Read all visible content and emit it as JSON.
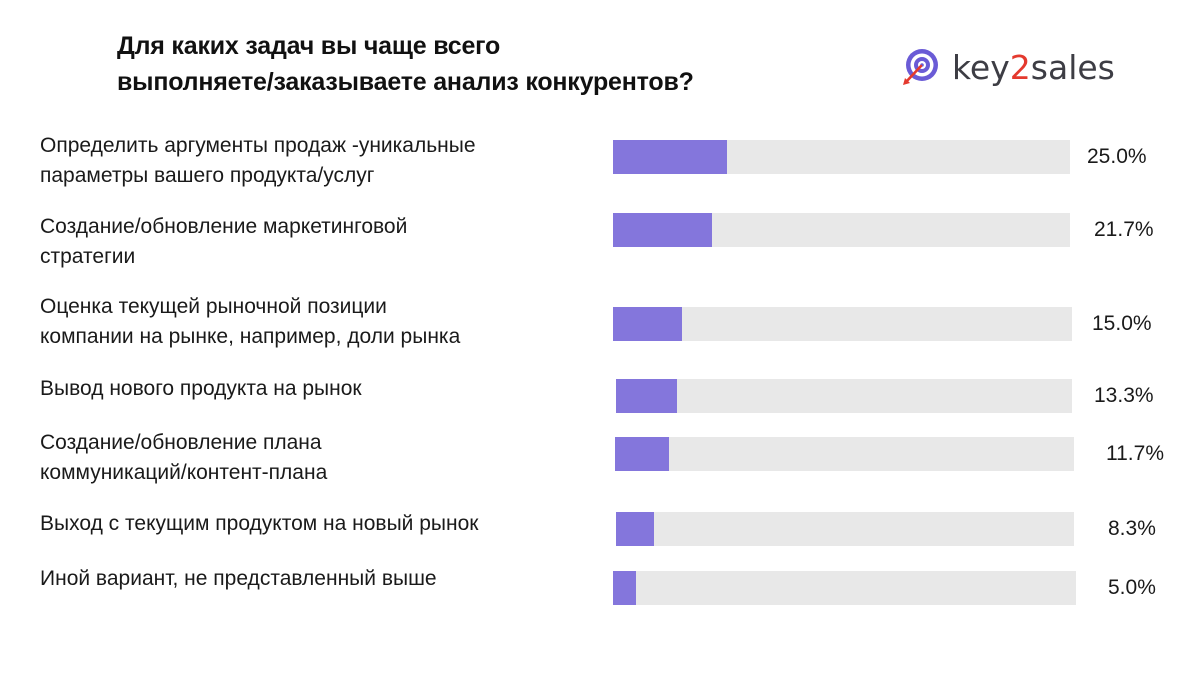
{
  "header": {
    "title_line1": "Для каких задач вы чаще всего",
    "title_line2": "выполняете/заказываете анализ конкурентов?"
  },
  "logo": {
    "name": "key2sales",
    "part_key": "key",
    "part_2": "2",
    "part_sales": "sales",
    "icon": "target-arrow-icon"
  },
  "colors": {
    "bar_fill": "#8476dc",
    "bar_track": "#e8e8e8",
    "logo_accent": "#e4392e",
    "logo_primary": "#6a5bd6"
  },
  "chart_data": {
    "type": "bar",
    "orientation": "horizontal",
    "title": "Для каких задач вы чаще всего выполняете/заказываете анализ конкурентов?",
    "xlim": [
      0,
      100
    ],
    "value_unit": "%",
    "grid": false,
    "categories": [
      [
        "Определить аргументы продаж -уникальные",
        "параметры вашего продукта/услуг"
      ],
      [
        "Создание/обновление маркетинговой",
        "стратегии"
      ],
      [
        "Оценка текущей рыночной позиции",
        "компании на рынке, например, доли рынка"
      ],
      [
        "Вывод нового продукта на рынок"
      ],
      [
        "Создание/обновление плана",
        "коммуникаций/контент-плана"
      ],
      [
        "Выход с текущим продуктом на новый рынок"
      ],
      [
        "Иной вариант, не представленный выше"
      ]
    ],
    "values": [
      25.0,
      21.7,
      15.0,
      13.3,
      11.7,
      8.3,
      5.0
    ],
    "value_labels": [
      "25.0%",
      "21.7%",
      "15.0%",
      "13.3%",
      "11.7%",
      "8.3%",
      "5.0%"
    ]
  }
}
